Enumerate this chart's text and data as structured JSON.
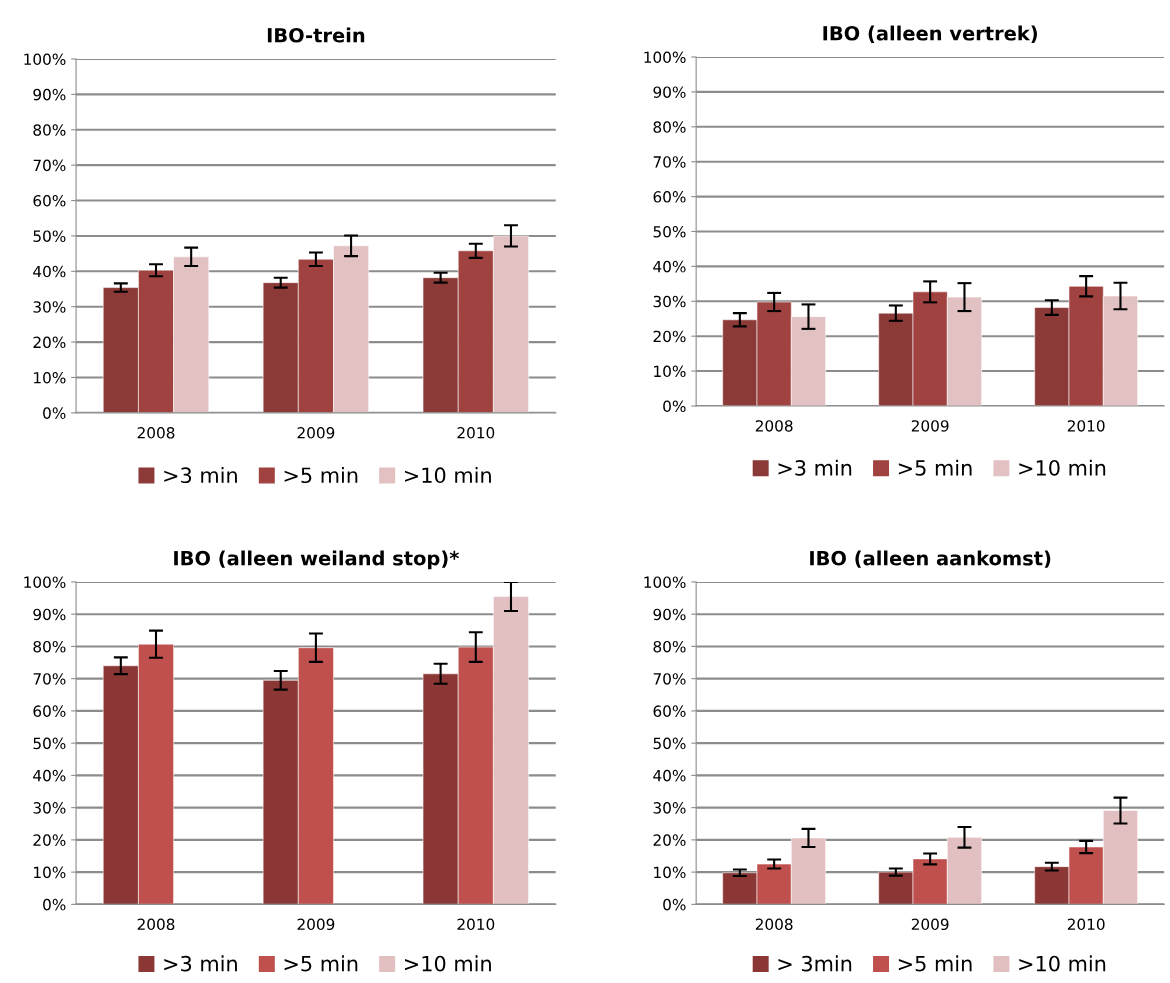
{
  "chart_data": [
    {
      "type": "bar",
      "title": "IBO-trein",
      "categories": [
        "2008",
        "2009",
        "2010"
      ],
      "ylim": [
        0,
        100
      ],
      "yticks": [
        {
          "value": 0,
          "label": "0%"
        },
        {
          "value": 10,
          "label": "10%"
        },
        {
          "value": 20,
          "label": "20%"
        },
        {
          "value": 30,
          "label": "30%"
        },
        {
          "value": 40,
          "label": "40%"
        },
        {
          "value": 50,
          "label": "50%"
        },
        {
          "value": 60,
          "label": "60%"
        },
        {
          "value": 70,
          "label": "70%"
        },
        {
          "value": 80,
          "label": "80%"
        },
        {
          "value": 90,
          "label": "90%"
        },
        {
          "value": 100,
          "label": "100%"
        }
      ],
      "grid": "y",
      "legend": "bottom",
      "series": [
        {
          "name": ">3 min",
          "color": "#8b3a38",
          "values": [
            35.4,
            36.8,
            38.2
          ],
          "errors": [
            1.2,
            1.4,
            1.4
          ]
        },
        {
          "name": ">5 min",
          "color": "#a04340",
          "values": [
            40.3,
            43.4,
            45.8
          ],
          "errors": [
            1.7,
            1.9,
            2.0
          ]
        },
        {
          "name": ">10 min",
          "color": "#e2c1c2",
          "values": [
            44.1,
            47.2,
            50.0
          ],
          "errors": [
            2.6,
            2.9,
            3.0
          ]
        }
      ]
    },
    {
      "type": "bar",
      "title": "IBO (alleen vertrek)",
      "categories": [
        "2008",
        "2009",
        "2010"
      ],
      "ylim": [
        0,
        100
      ],
      "yticks": [
        {
          "value": 0,
          "label": "0%"
        },
        {
          "value": 10,
          "label": "10%"
        },
        {
          "value": 20,
          "label": "20%"
        },
        {
          "value": 30,
          "label": "30%"
        },
        {
          "value": 40,
          "label": "40%"
        },
        {
          "value": 50,
          "label": "50%"
        },
        {
          "value": 60,
          "label": "60%"
        },
        {
          "value": 70,
          "label": "70%"
        },
        {
          "value": 80,
          "label": "80%"
        },
        {
          "value": 90,
          "label": "90%"
        },
        {
          "value": 100,
          "label": "100%"
        }
      ],
      "grid": "y",
      "legend": "bottom",
      "series": [
        {
          "name": ">3 min",
          "color": "#8b3a38",
          "values": [
            24.7,
            26.6,
            28.2
          ],
          "errors": [
            1.9,
            2.2,
            2.1
          ]
        },
        {
          "name": ">5 min",
          "color": "#a04340",
          "values": [
            29.8,
            32.7,
            34.3
          ],
          "errors": [
            2.6,
            3.0,
            2.9
          ]
        },
        {
          "name": ">10 min",
          "color": "#e2c1c2",
          "values": [
            25.6,
            31.2,
            31.5
          ],
          "errors": [
            3.5,
            4.0,
            3.8
          ]
        }
      ]
    },
    {
      "type": "bar",
      "title": "IBO (alleen weiland stop)*",
      "categories": [
        "2008",
        "2009",
        "2010"
      ],
      "ylim": [
        0,
        100
      ],
      "yticks": [
        {
          "value": 0,
          "label": "0%"
        },
        {
          "value": 10,
          "label": "10%"
        },
        {
          "value": 20,
          "label": "20%"
        },
        {
          "value": 30,
          "label": "30%"
        },
        {
          "value": 40,
          "label": "40%"
        },
        {
          "value": 50,
          "label": "50%"
        },
        {
          "value": 60,
          "label": "60%"
        },
        {
          "value": 70,
          "label": "70%"
        },
        {
          "value": 80,
          "label": "80%"
        },
        {
          "value": 90,
          "label": "90%"
        },
        {
          "value": 100,
          "label": "100%"
        }
      ],
      "grid": "y",
      "legend": "bottom",
      "series": [
        {
          "name": ">3 min",
          "color": "#8b3735",
          "values": [
            74.0,
            69.5,
            71.5
          ],
          "errors": [
            2.6,
            2.9,
            3.1
          ]
        },
        {
          "name": ">5 min",
          "color": "#c0504d",
          "values": [
            80.7,
            79.6,
            79.8
          ],
          "errors": [
            4.2,
            4.4,
            4.6
          ]
        },
        {
          "name": ">10 min",
          "color": "#e2bfc0",
          "values": [
            null,
            null,
            95.5
          ],
          "errors": [
            null,
            null,
            4.5
          ]
        }
      ]
    },
    {
      "type": "bar",
      "title": "IBO (alleen aankomst)",
      "categories": [
        "2008",
        "2009",
        "2010"
      ],
      "ylim": [
        0,
        100
      ],
      "yticks": [
        {
          "value": 0,
          "label": "0%"
        },
        {
          "value": 10,
          "label": "10%"
        },
        {
          "value": 20,
          "label": "20%"
        },
        {
          "value": 30,
          "label": "30%"
        },
        {
          "value": 40,
          "label": "40%"
        },
        {
          "value": 50,
          "label": "50%"
        },
        {
          "value": 60,
          "label": "60%"
        },
        {
          "value": 70,
          "label": "70%"
        },
        {
          "value": 80,
          "label": "80%"
        },
        {
          "value": 90,
          "label": "90%"
        },
        {
          "value": 100,
          "label": "100%"
        }
      ],
      "grid": "y",
      "legend": "bottom",
      "series": [
        {
          "name": "> 3min",
          "color": "#8b3735",
          "values": [
            9.8,
            10.0,
            11.7
          ],
          "errors": [
            1.0,
            1.1,
            1.2
          ]
        },
        {
          "name": ">5 min",
          "color": "#c0504d",
          "values": [
            12.5,
            14.1,
            17.8
          ],
          "errors": [
            1.4,
            1.7,
            1.9
          ]
        },
        {
          "name": ">10 min",
          "color": "#e2bfc0",
          "values": [
            20.6,
            20.8,
            29.1
          ],
          "errors": [
            2.8,
            3.2,
            4.0
          ]
        }
      ]
    }
  ]
}
